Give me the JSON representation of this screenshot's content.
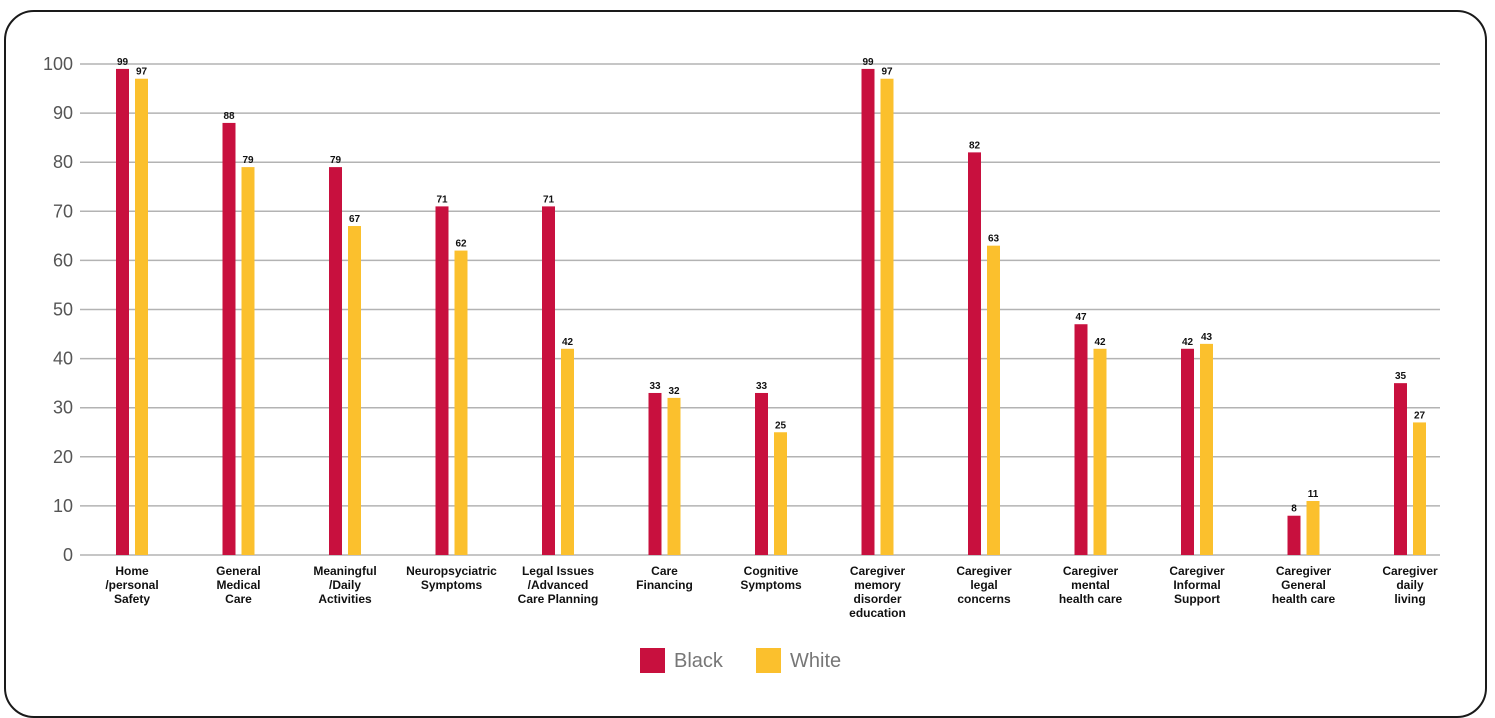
{
  "chart_data": {
    "type": "bar",
    "categories": [
      [
        "Home",
        "/personal",
        "Safety"
      ],
      [
        "General",
        "Medical",
        "Care"
      ],
      [
        "Meaningful",
        "/Daily",
        "Activities"
      ],
      [
        "Neuropsyciatric",
        "Symptoms"
      ],
      [
        "Legal Issues",
        "/Advanced",
        "Care Planning"
      ],
      [
        "Care",
        "Financing"
      ],
      [
        "Cognitive",
        "Symptoms"
      ],
      [
        "Caregiver",
        "memory",
        "disorder",
        "education"
      ],
      [
        "Caregiver",
        "legal",
        "concerns"
      ],
      [
        "Caregiver",
        "mental",
        "health care"
      ],
      [
        "Caregiver",
        "Informal",
        "Support"
      ],
      [
        "Caregiver",
        "General",
        "health care"
      ],
      [
        "Caregiver",
        "daily",
        "living"
      ]
    ],
    "series": [
      {
        "name": "Black",
        "color": "#c8103e",
        "values": [
          99,
          88,
          79,
          71,
          71,
          33,
          33,
          99,
          82,
          47,
          42,
          8,
          35
        ]
      },
      {
        "name": "White",
        "color": "#fbc02d",
        "values": [
          97,
          79,
          67,
          62,
          42,
          32,
          25,
          97,
          63,
          42,
          43,
          11,
          27
        ]
      }
    ],
    "yticks": [
      0,
      10,
      20,
      30,
      40,
      50,
      60,
      70,
      80,
      90,
      100
    ],
    "ylim": [
      0,
      100
    ],
    "grid": true,
    "legend_position": "bottom-center",
    "title": "",
    "xlabel": "",
    "ylabel": ""
  }
}
